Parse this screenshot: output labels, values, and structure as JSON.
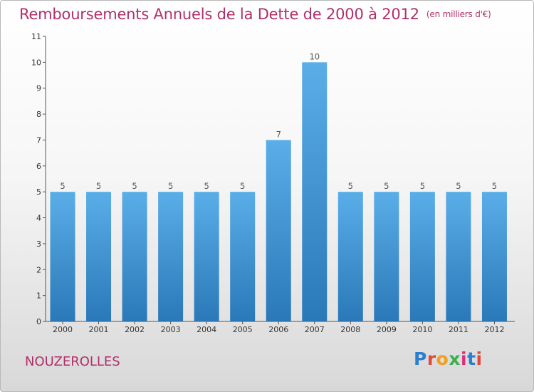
{
  "title": "Remboursements Annuels de la Dette de 2000 à 2012",
  "subtitle": "(en milliers d'€)",
  "commune": "NOUZEROLLES",
  "logo": {
    "text": "Proxiti",
    "colors": [
      "#2a7fd0",
      "#e04a3a",
      "#f0a020",
      "#3ab04a",
      "#d8307a",
      "#2a7fd0",
      "#e04a3a"
    ]
  },
  "colors": {
    "bar_top": "#5aaee8",
    "bar_bottom": "#2a78b8",
    "title": "#b0306a"
  },
  "chart_data": {
    "type": "bar",
    "categories": [
      "2000",
      "2001",
      "2002",
      "2003",
      "2004",
      "2005",
      "2006",
      "2007",
      "2008",
      "2009",
      "2010",
      "2011",
      "2012"
    ],
    "values": [
      5,
      5,
      5,
      5,
      5,
      5,
      7,
      10,
      5,
      5,
      5,
      5,
      5
    ],
    "data_labels": [
      "5",
      "5",
      "5",
      "5",
      "5",
      "5",
      "7",
      "10",
      "5",
      "5",
      "5",
      "5",
      "5"
    ],
    "ylim": [
      0,
      11
    ],
    "yticks": [
      0,
      1,
      2,
      3,
      4,
      5,
      6,
      7,
      8,
      9,
      10,
      11
    ],
    "grid": false,
    "xlabel": "",
    "ylabel": ""
  }
}
